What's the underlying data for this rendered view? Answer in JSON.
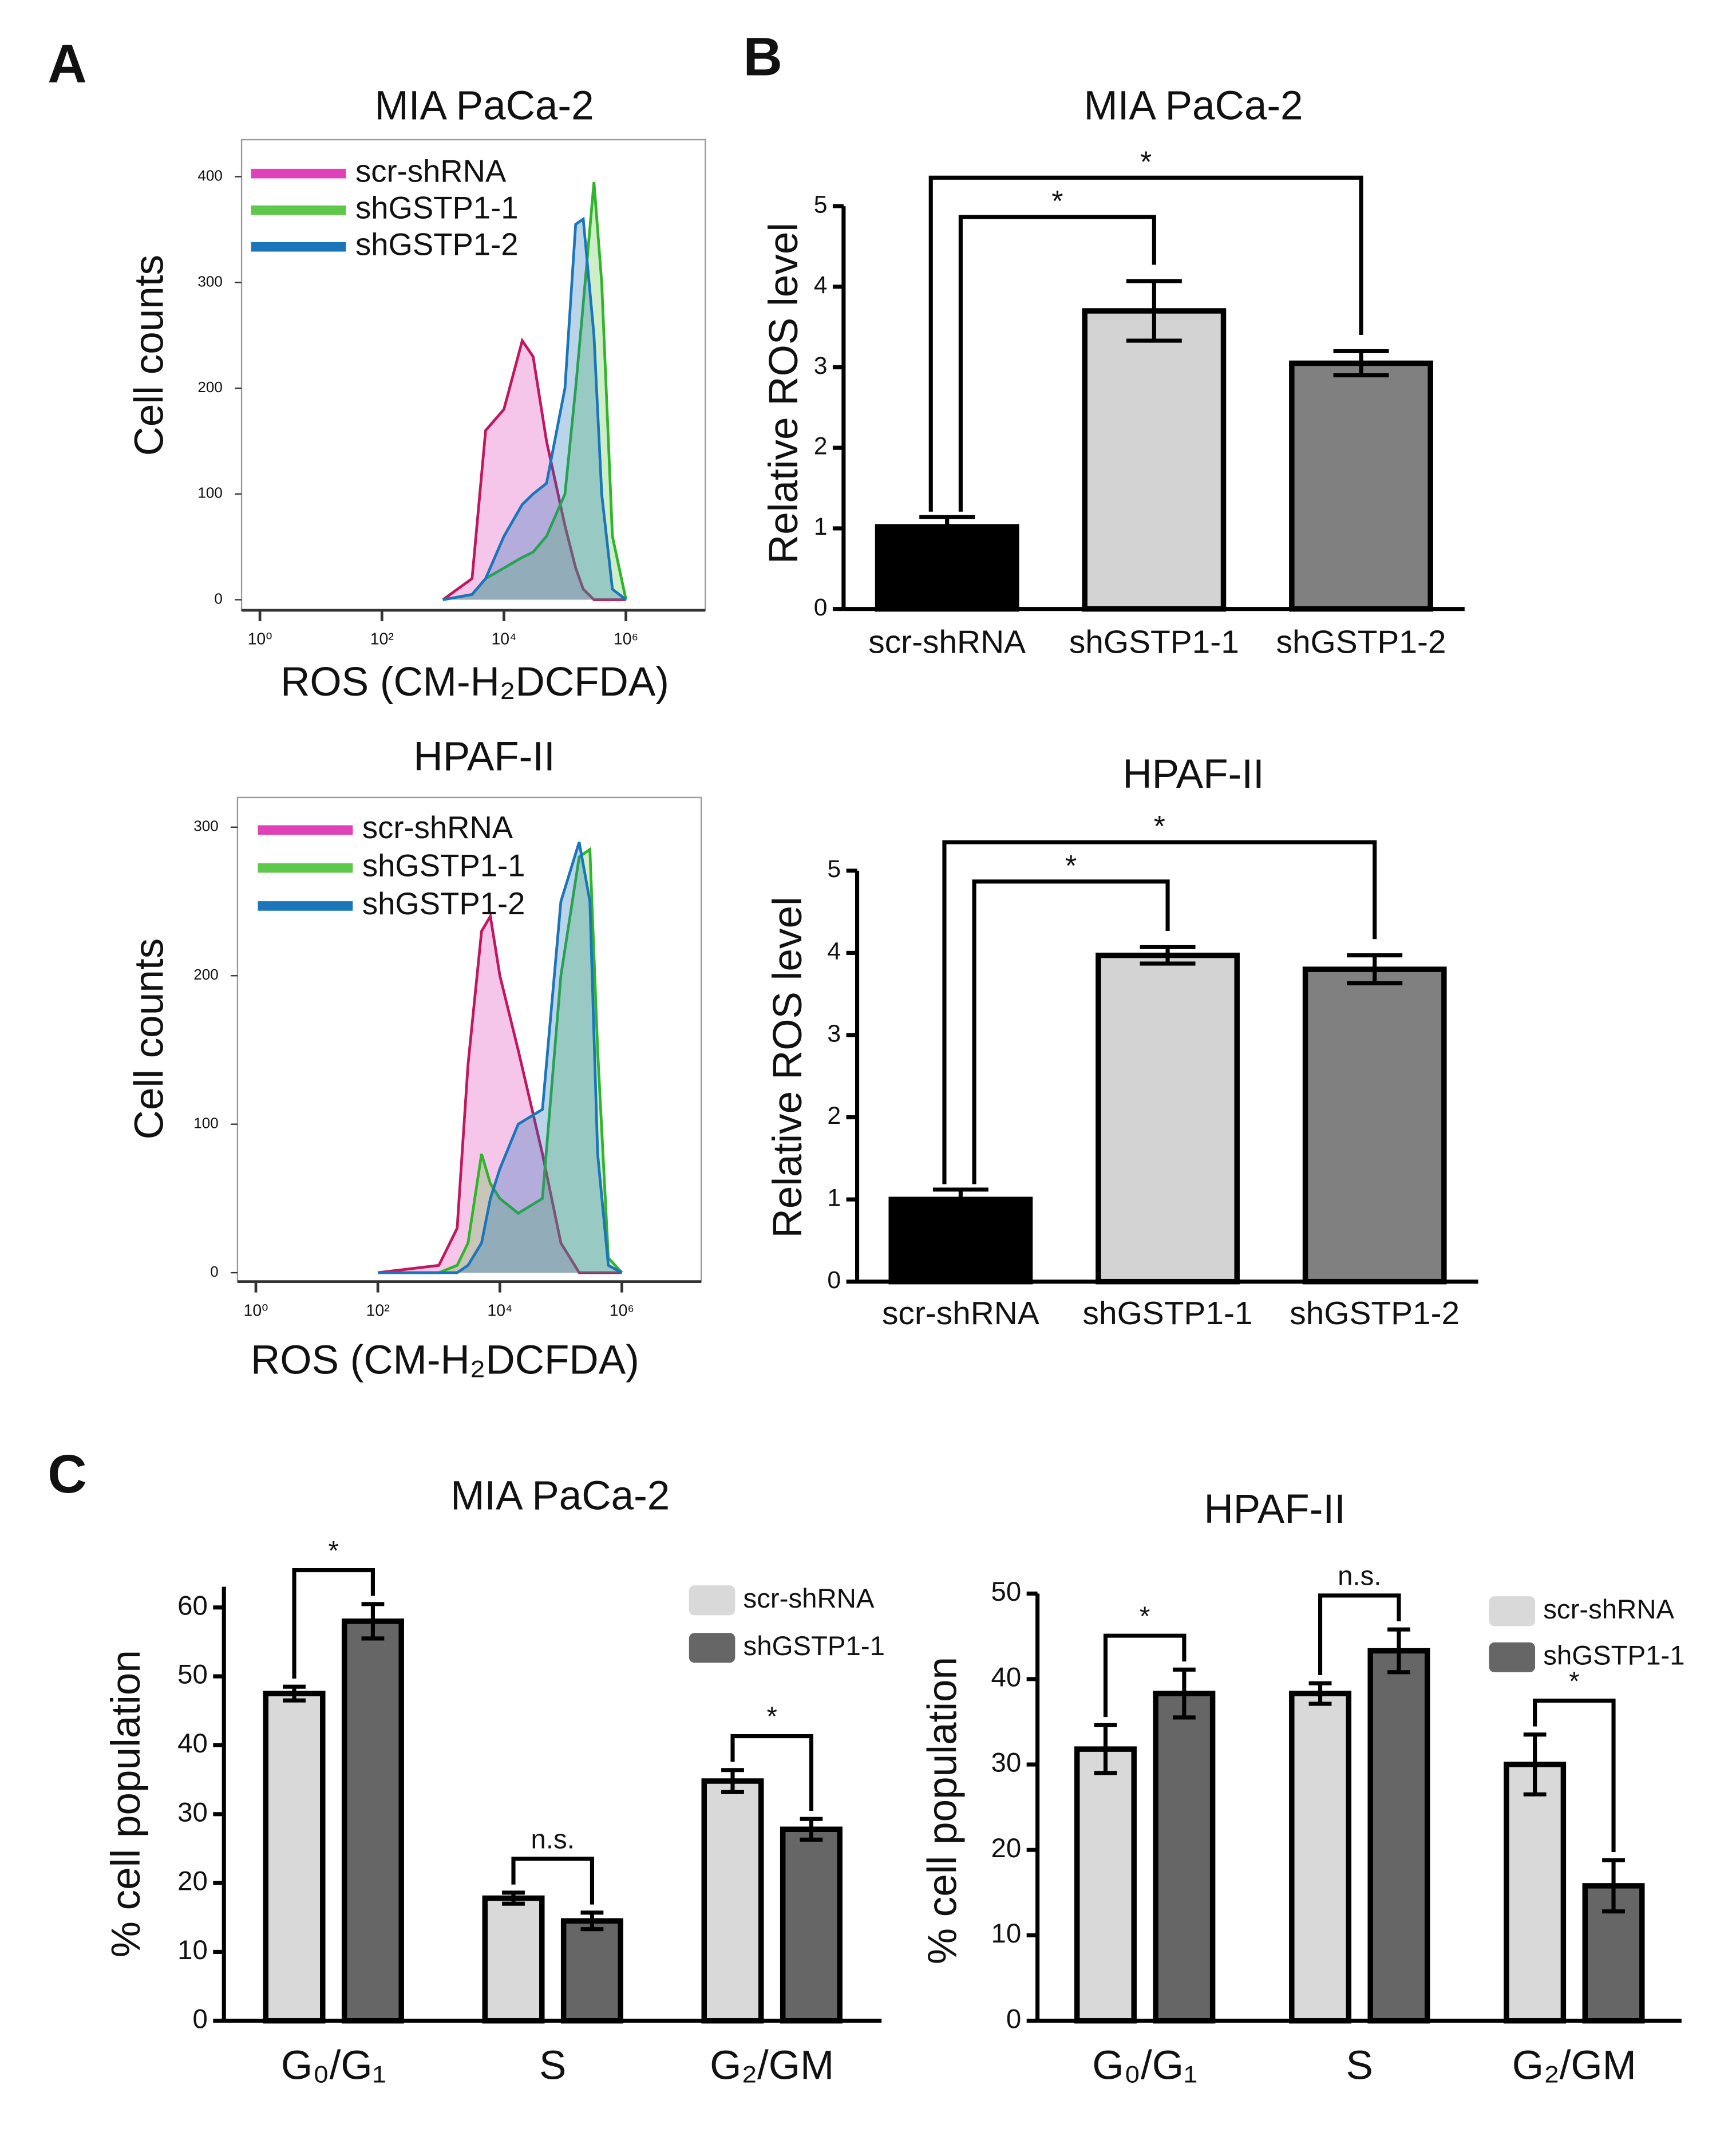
{
  "panel_labels": [
    "A",
    "B",
    "C"
  ],
  "chart_data": [
    {
      "type": "area",
      "title": "MIA PaCa-2",
      "x_label": "ROS (CM-H₂DCFDA)",
      "y_label": "Cell counts",
      "xscale": "log",
      "xlim": [
        0.5,
        20000000
      ],
      "xticks": [
        {
          "value": 1,
          "label": "10⁰"
        },
        {
          "value": 100,
          "label": "10²"
        },
        {
          "value": 10000,
          "label": "10⁴"
        },
        {
          "value": 1000000,
          "label": "10⁶"
        }
      ],
      "ylim": [
        -10,
        435
      ],
      "yticks": [
        0,
        100,
        200,
        300,
        400
      ],
      "x": [
        1000,
        3000,
        5000,
        10000,
        20000,
        30000,
        50000,
        100000,
        150000,
        200000,
        300000,
        400000,
        600000,
        1000000
      ],
      "series": [
        {
          "name": "scr-shRNA",
          "color": "#e040b8",
          "line_color": "#c0185f",
          "values": [
            0,
            20,
            160,
            180,
            245,
            230,
            150,
            70,
            30,
            10,
            0,
            0,
            0,
            0
          ]
        },
        {
          "name": "shGSTP1-1",
          "color": "#5ec84a",
          "line_color": "#2fb52a",
          "values": [
            0,
            5,
            20,
            30,
            40,
            45,
            60,
            100,
            200,
            280,
            395,
            300,
            60,
            0
          ]
        },
        {
          "name": "shGSTP1-2",
          "color": "#1b75bb",
          "line_color": "#1b75bb",
          "values": [
            0,
            5,
            20,
            60,
            90,
            100,
            110,
            200,
            355,
            360,
            250,
            100,
            10,
            0
          ]
        }
      ]
    },
    {
      "type": "area",
      "title": "HPAF-II",
      "x_label": "ROS (CM-H₂DCFDA)",
      "y_label": "Cell counts",
      "xscale": "log",
      "xlim": [
        0.5,
        20000000
      ],
      "xticks": [
        {
          "value": 1,
          "label": "10⁰"
        },
        {
          "value": 100,
          "label": "10²"
        },
        {
          "value": 10000,
          "label": "10⁴"
        },
        {
          "value": 1000000,
          "label": "10⁶"
        }
      ],
      "ylim": [
        -6,
        320
      ],
      "yticks": [
        0,
        100,
        200,
        300
      ],
      "x": [
        100,
        1000,
        2000,
        3000,
        5000,
        7000,
        10000,
        20000,
        50000,
        100000,
        200000,
        300000,
        400000,
        600000,
        1000000
      ],
      "series": [
        {
          "name": "scr-shRNA",
          "color": "#e040b8",
          "line_color": "#c0185f",
          "values": [
            0,
            5,
            30,
            140,
            230,
            240,
            200,
            150,
            80,
            20,
            0,
            0,
            0,
            0,
            0
          ]
        },
        {
          "name": "shGSTP1-1",
          "color": "#5ec84a",
          "line_color": "#2fb52a",
          "values": [
            0,
            0,
            5,
            20,
            80,
            60,
            50,
            40,
            50,
            200,
            280,
            285,
            150,
            10,
            0
          ]
        },
        {
          "name": "shGSTP1-2",
          "color": "#1b75bb",
          "line_color": "#1b75bb",
          "values": [
            0,
            0,
            0,
            5,
            20,
            50,
            70,
            100,
            110,
            250,
            290,
            250,
            80,
            5,
            0
          ]
        }
      ]
    },
    {
      "type": "bar",
      "title": "MIA PaCa-2",
      "y_label": "Relative ROS level",
      "categories": [
        "scr-shRNA",
        "shGSTP1-1",
        "shGSTP1-2"
      ],
      "values": [
        1.02,
        3.7,
        3.05
      ],
      "errors": [
        0.12,
        0.37,
        0.15
      ],
      "colors": [
        "#000000",
        "#d3d3d3",
        "#808080"
      ],
      "ylim": [
        0,
        5
      ],
      "yticks": [
        0,
        1,
        2,
        3,
        4,
        5
      ],
      "comparisons": [
        {
          "bars": [
            0,
            1
          ],
          "label": "*"
        },
        {
          "bars": [
            0,
            2
          ],
          "label": "*"
        }
      ]
    },
    {
      "type": "bar",
      "title": "HPAF-II",
      "y_label": "Relative ROS level",
      "categories": [
        "scr-shRNA",
        "shGSTP1-1",
        "shGSTP1-2"
      ],
      "values": [
        1.0,
        3.97,
        3.8
      ],
      "errors": [
        0.12,
        0.1,
        0.17
      ],
      "colors": [
        "#000000",
        "#d3d3d3",
        "#808080"
      ],
      "ylim": [
        0,
        5
      ],
      "yticks": [
        0,
        1,
        2,
        3,
        4,
        5
      ],
      "comparisons": [
        {
          "bars": [
            0,
            1
          ],
          "label": "*"
        },
        {
          "bars": [
            0,
            2
          ],
          "label": "*"
        }
      ]
    },
    {
      "type": "bar",
      "title": "MIA PaCa-2",
      "y_label": "% cell population",
      "categories": [
        "G₀/G₁",
        "S",
        "G₂/GM"
      ],
      "ylim": [
        0,
        63
      ],
      "yticks": [
        0,
        10,
        20,
        30,
        40,
        50,
        60
      ],
      "series": [
        {
          "name": "scr-shRNA",
          "color": "#d9d9d9",
          "values": [
            47.5,
            17.8,
            34.8
          ],
          "errors": [
            1,
            0.8,
            1.6
          ]
        },
        {
          "name": "shGSTP1-1",
          "color": "#666666",
          "values": [
            58,
            14.5,
            27.8
          ],
          "errors": [
            2.5,
            1.2,
            1.5
          ]
        }
      ],
      "comparison_labels": [
        "*",
        "n.s.",
        "*"
      ]
    },
    {
      "type": "bar",
      "title": "HPAF-II",
      "y_label": "% cell population",
      "categories": [
        "G₀/G₁",
        "S",
        "G₂/GM"
      ],
      "ylim": [
        0,
        50
      ],
      "yticks": [
        0,
        10,
        20,
        30,
        40,
        50
      ],
      "series": [
        {
          "name": "scr-shRNA",
          "color": "#d9d9d9",
          "values": [
            31.8,
            38.3,
            30
          ],
          "errors": [
            2.8,
            1.2,
            3.5
          ]
        },
        {
          "name": "shGSTP1-1",
          "color": "#666666",
          "values": [
            38.3,
            43.3,
            15.8
          ],
          "errors": [
            2.8,
            2.5,
            3
          ]
        }
      ],
      "comparison_labels": [
        "*",
        "n.s.",
        "*"
      ]
    }
  ]
}
